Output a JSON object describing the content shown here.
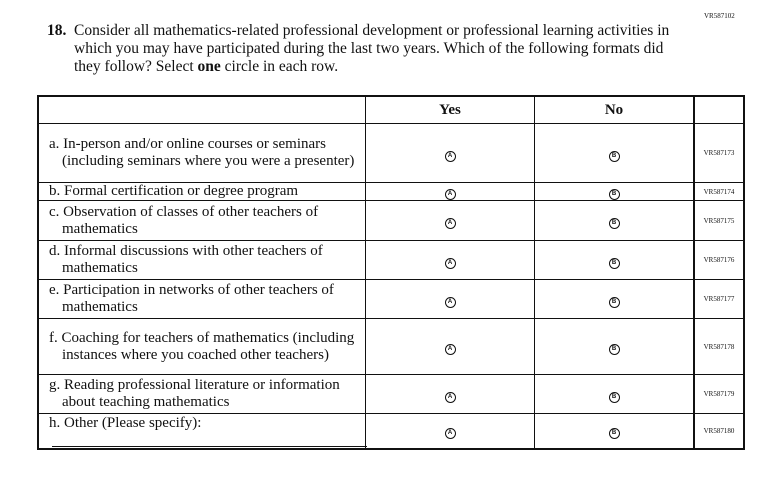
{
  "top_code": "VR587102",
  "question": {
    "number": "18.",
    "text_before": "Consider all mathematics-related professional development or professional learning activities in which you may have participated during the last two years. Which of the following formats did they follow? Select ",
    "text_emphasis": "one",
    "text_after": " circle in each row."
  },
  "table": {
    "headers": [
      "",
      "Yes",
      "No",
      ""
    ],
    "rows": [
      {
        "label": "a. In-person and/or online courses or seminars (including seminars where you were a presenter)",
        "yes": "A",
        "no": "B",
        "code": "VR587173"
      },
      {
        "label": "b. Formal certification or degree program",
        "yes": "A",
        "no": "B",
        "code": "VR587174"
      },
      {
        "label": "c. Observation of classes of other teachers of mathematics",
        "yes": "A",
        "no": "B",
        "code": "VR587175"
      },
      {
        "label": "d. Informal discussions with other teachers of mathematics",
        "yes": "A",
        "no": "B",
        "code": "VR587176"
      },
      {
        "label": "e. Participation in networks of other teachers of mathematics",
        "yes": "A",
        "no": "B",
        "code": "VR587177"
      },
      {
        "label": "f. Coaching for teachers of mathematics (including instances where you coached other teachers)",
        "yes": "A",
        "no": "B",
        "code": "VR587178"
      },
      {
        "label": "g. Reading professional literature or information about teaching mathematics",
        "yes": "A",
        "no": "B",
        "code": "VR587179"
      },
      {
        "label": "h. Other (Please specify):",
        "yes": "A",
        "no": "B",
        "code": "VR587180"
      }
    ]
  }
}
